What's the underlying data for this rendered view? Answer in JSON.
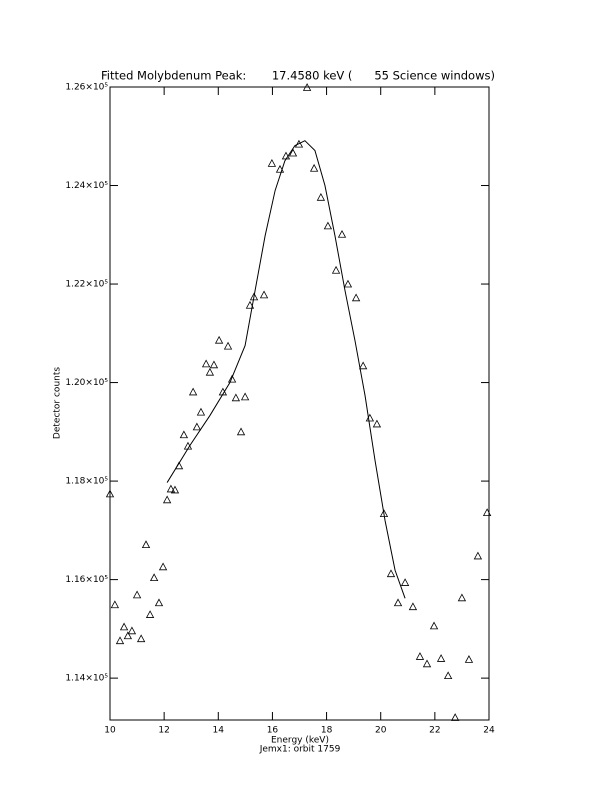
{
  "chart_data": {
    "type": "scatter",
    "title": "Fitted Molybdenum Peak:       17.4580 keV (      55 Science windows)",
    "x_label": "Energy (keV)",
    "y_label": "Detector counts",
    "subtitle": "Jemx1: orbit 1759",
    "xlim": [
      10,
      24
    ],
    "xticks": [
      10,
      12,
      14,
      16,
      18,
      20,
      22,
      24
    ],
    "ylim": [
      113150,
      126000
    ],
    "yticks": [
      {
        "value": 114000,
        "label": "1.14×10⁵"
      },
      {
        "value": 116000,
        "label": "1.16×10⁵"
      },
      {
        "value": 118000,
        "label": "1.18×10⁵"
      },
      {
        "value": 120000,
        "label": "1.20×10⁵"
      },
      {
        "value": 122000,
        "label": "1.22×10⁵"
      },
      {
        "value": 124000,
        "label": "1.24×10⁵"
      },
      {
        "value": 126000,
        "label": "1.26×10⁵"
      }
    ],
    "color": "#000000",
    "points": {
      "x": [
        10.0,
        10.18,
        10.37,
        10.52,
        10.66,
        10.81,
        11.0,
        11.15,
        11.33,
        11.48,
        11.63,
        11.81,
        11.96,
        12.11,
        12.25,
        12.4,
        12.55,
        12.73,
        12.88,
        13.07,
        13.21,
        13.36,
        13.55,
        13.69,
        13.84,
        14.03,
        14.17,
        14.36,
        14.51,
        14.65,
        14.84,
        14.99,
        15.17,
        15.32,
        15.69,
        15.98,
        16.28,
        16.5,
        16.76,
        16.98,
        17.28,
        17.54,
        17.79,
        18.05,
        18.35,
        18.57,
        18.79,
        19.09,
        19.35,
        19.6,
        19.86,
        20.12,
        20.38,
        20.64,
        20.9,
        21.19,
        21.45,
        21.71,
        21.97,
        22.23,
        22.49,
        22.75,
        23.0,
        23.26,
        23.59,
        23.93
      ],
      "y": [
        117730,
        115480,
        114750,
        115030,
        114850,
        114950,
        115680,
        114790,
        116700,
        115280,
        116030,
        115520,
        116250,
        117610,
        117830,
        117810,
        118300,
        118930,
        118700,
        119800,
        119090,
        119390,
        120370,
        120200,
        120350,
        120850,
        119800,
        120730,
        120060,
        119680,
        118990,
        119700,
        121560,
        121730,
        121770,
        124440,
        124320,
        124590,
        124650,
        124830,
        125980,
        124340,
        123750,
        123170,
        122270,
        123000,
        121990,
        121710,
        120330,
        119270,
        119150,
        117330,
        116110,
        115520,
        115930,
        115440,
        114430,
        114280,
        115050,
        114390,
        114040,
        113190,
        115620,
        114370,
        116470,
        117350
      ]
    },
    "fit": {
      "x": [
        12.11,
        12.96,
        13.69,
        14.43,
        14.99,
        15.36,
        15.73,
        16.1,
        16.46,
        16.83,
        17.2,
        17.57,
        17.94,
        18.31,
        18.68,
        19.05,
        19.42,
        19.79,
        20.16,
        20.53,
        20.9
      ],
      "y": [
        117970,
        118730,
        119330,
        120000,
        120750,
        121870,
        122980,
        123900,
        124500,
        124810,
        124910,
        124710,
        124000,
        122980,
        121870,
        120850,
        119740,
        118420,
        117200,
        116190,
        115620
      ]
    }
  }
}
